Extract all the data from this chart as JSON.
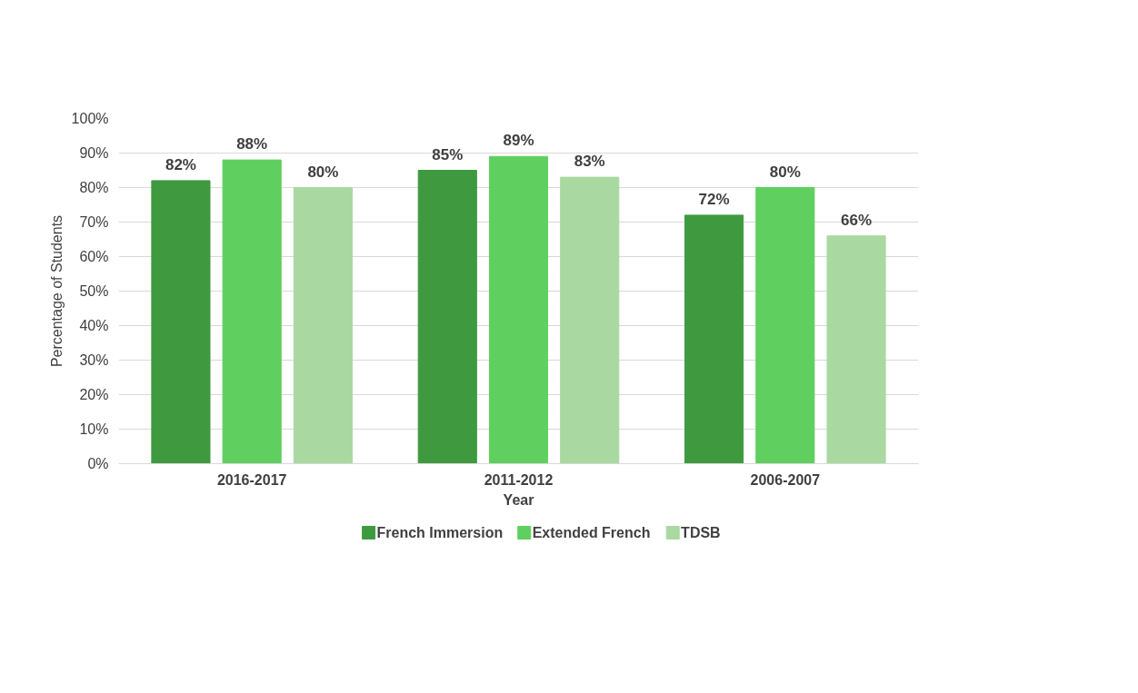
{
  "chart_data": {
    "type": "bar",
    "xlabel": "Year",
    "ylabel": "Percentage of Students",
    "categories": [
      "2016-2017",
      "2011-2012",
      "2006-2007"
    ],
    "series": [
      {
        "name": "French Immersion",
        "color": "#3f9a3f",
        "values": [
          82,
          85,
          72
        ],
        "value_labels": [
          "82%",
          "85%",
          "72%"
        ]
      },
      {
        "name": "Extended French",
        "color": "#5fcf5f",
        "values": [
          88,
          89,
          80
        ],
        "value_labels": [
          "88%",
          "89%",
          "80%"
        ]
      },
      {
        "name": "TDSB",
        "color": "#a9d9a1",
        "values": [
          80,
          83,
          66
        ],
        "value_labels": [
          "80%",
          "83%",
          "66%"
        ]
      }
    ],
    "ylim": [
      0,
      100
    ],
    "yticks": [
      {
        "value": 0,
        "label": "0%"
      },
      {
        "value": 10,
        "label": "10%"
      },
      {
        "value": 20,
        "label": "20%"
      },
      {
        "value": 30,
        "label": "30%"
      },
      {
        "value": 40,
        "label": "40%"
      },
      {
        "value": 50,
        "label": "50%"
      },
      {
        "value": 60,
        "label": "60%"
      },
      {
        "value": 70,
        "label": "70%"
      },
      {
        "value": 80,
        "label": "80%"
      },
      {
        "value": 90,
        "label": "90%"
      },
      {
        "value": 100,
        "label": "100%"
      }
    ],
    "grid": "y",
    "legend": "bottom"
  }
}
